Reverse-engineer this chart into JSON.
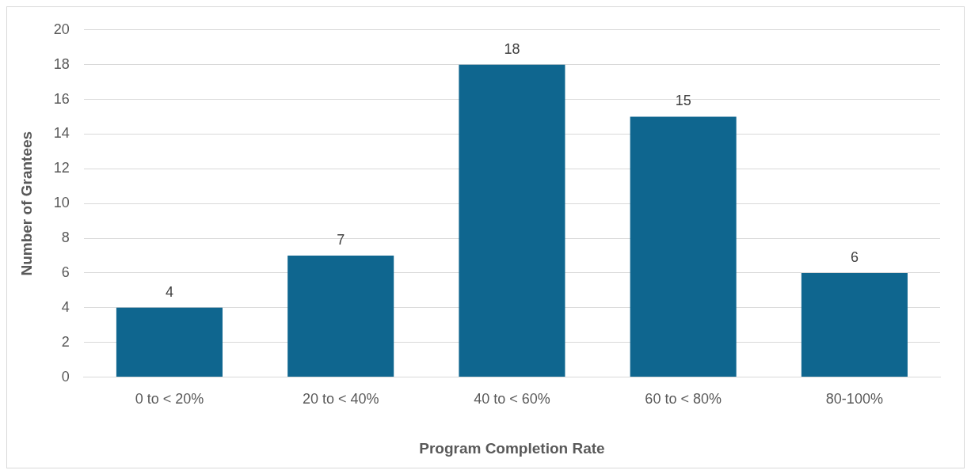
{
  "chart_data": {
    "type": "bar",
    "xlabel": "Program Completion Rate",
    "ylabel": "Number of Grantees",
    "categories": [
      "0 to < 20%",
      "20 to < 40%",
      "40 to < 60%",
      "60 to < 80%",
      "80-100%"
    ],
    "values": [
      4,
      7,
      18,
      15,
      6
    ],
    "color": "#0f668f",
    "ylim": [
      0,
      20
    ],
    "yticks": [
      0,
      2,
      4,
      6,
      8,
      10,
      12,
      14,
      16,
      18,
      20
    ],
    "grid": "y",
    "data_labels": true,
    "legend": false
  }
}
